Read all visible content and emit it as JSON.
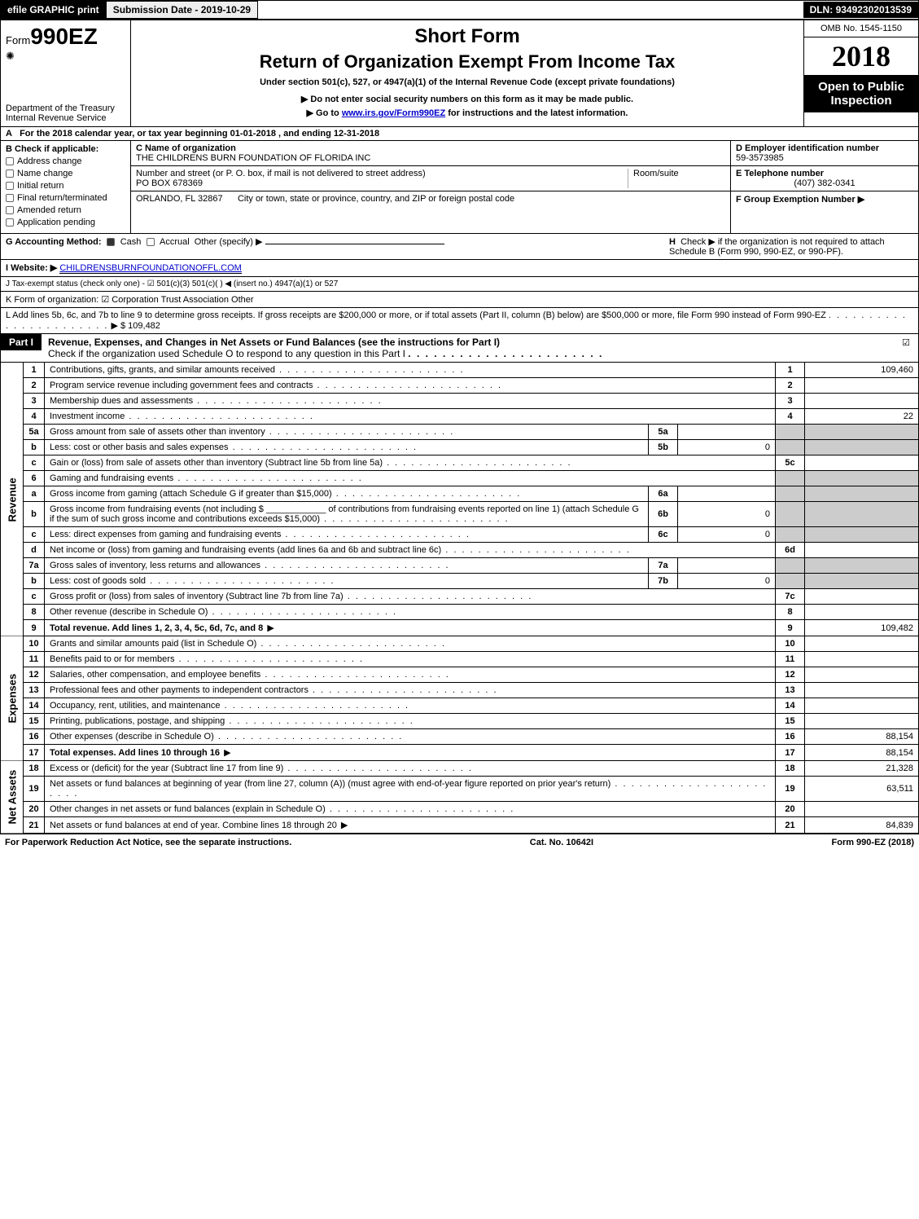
{
  "top": {
    "print_btn": "efile GRAPHIC print",
    "submission_label": "Submission Date - ",
    "submission_date": "2019-10-29",
    "dln_label": "DLN: ",
    "dln": "93492302013539"
  },
  "hdr": {
    "form_prefix": "Form",
    "form_number": "990EZ",
    "short_form": "Short Form",
    "title": "Return of Organization Exempt From Income Tax",
    "subtitle": "Under section 501(c), 527, or 4947(a)(1) of the Internal Revenue Code (except private foundations)",
    "note1": "▶ Do not enter social security numbers on this form as it may be made public.",
    "note2_prefix": "▶ Go to ",
    "note2_link": "www.irs.gov/Form990EZ",
    "note2_suffix": " for instructions and the latest information.",
    "dept1": "Department of the Treasury",
    "dept2": "Internal Revenue Service",
    "omb": "OMB No. 1545-1150",
    "year": "2018",
    "open_public": "Open to Public Inspection"
  },
  "row_a": {
    "label": "A",
    "text_prefix": "For the 2018 calendar year, or tax year beginning ",
    "begin": "01-01-2018",
    "mid": " , and ending ",
    "end": "12-31-2018"
  },
  "box_b": {
    "label": "B",
    "heading": "Check if applicable:",
    "items": [
      {
        "label": "Address change"
      },
      {
        "label": "Name change"
      },
      {
        "label": "Initial return"
      },
      {
        "label": "Final return/terminated"
      },
      {
        "label": "Amended return"
      },
      {
        "label": "Application pending"
      }
    ]
  },
  "box_c": {
    "c_label": "C Name of organization",
    "c_name": "THE CHILDRENS BURN FOUNDATION OF FLORIDA INC",
    "street_label": "Number and street (or P. O. box, if mail is not delivered to street address)",
    "street": "PO BOX 678369",
    "room_label": "Room/suite",
    "city_label": "City or town, state or province, country, and ZIP or foreign postal code",
    "city": "ORLANDO, FL  32867"
  },
  "box_d": {
    "d_label": "D Employer identification number",
    "ein": "59-3573985",
    "e_label": "E Telephone number",
    "phone": "(407) 382-0341",
    "f_label": "F Group Exemption Number ▶",
    "f_val": ""
  },
  "g": {
    "label": "G Accounting Method:",
    "cash": "Cash",
    "accrual": "Accrual",
    "other": "Other (specify) ▶"
  },
  "h": {
    "label": "H",
    "text": "Check ▶    if the organization is not required to attach Schedule B (Form 990, 990-EZ, or 990-PF)."
  },
  "i": {
    "label": "I Website: ▶",
    "website": "CHILDRENSBURNFOUNDATIONOFFL.COM"
  },
  "j": {
    "text": "J Tax-exempt status (check only one) -  ☑ 501(c)(3)   501(c)(  ) ◀ (insert no.)   4947(a)(1) or   527"
  },
  "k": {
    "text": "K Form of organization:   ☑ Corporation    Trust    Association    Other"
  },
  "l": {
    "text1": "L Add lines 5b, 6c, and 7b to line 9 to determine gross receipts. If gross receipts are $200,000 or more, or if total assets (Part II, column (B) below) are $500,000 or more, file Form 990 instead of Form 990-EZ",
    "arrow": " ▶ ",
    "amount": "$ 109,482"
  },
  "part1": {
    "label": "Part I",
    "title": "Revenue, Expenses, and Changes in Net Assets or Fund Balances (see the instructions for Part I)",
    "subtitle": "Check if the organization used Schedule O to respond to any question in this Part I",
    "check": "☑"
  },
  "sections": {
    "revenue": "Revenue",
    "expenses": "Expenses",
    "net_assets": "Net Assets"
  },
  "lines": [
    {
      "n": "1",
      "desc": "Contributions, gifts, grants, and similar amounts received",
      "rn": "1",
      "rv": "109,460"
    },
    {
      "n": "2",
      "desc": "Program service revenue including government fees and contracts",
      "rn": "2",
      "rv": ""
    },
    {
      "n": "3",
      "desc": "Membership dues and assessments",
      "rn": "3",
      "rv": ""
    },
    {
      "n": "4",
      "desc": "Investment income",
      "rn": "4",
      "rv": "22"
    },
    {
      "n": "5a",
      "desc": "Gross amount from sale of assets other than inventory",
      "mn": "5a",
      "mv": ""
    },
    {
      "n": "b",
      "desc": "Less: cost or other basis and sales expenses",
      "mn": "5b",
      "mv": "0"
    },
    {
      "n": "c",
      "desc": "Gain or (loss) from sale of assets other than inventory (Subtract line 5b from line 5a)",
      "rn": "5c",
      "rv": ""
    },
    {
      "n": "6",
      "desc": "Gaming and fundraising events"
    },
    {
      "n": "a",
      "desc": "Gross income from gaming (attach Schedule G if greater than $15,000)",
      "mn": "6a",
      "mv": ""
    },
    {
      "n": "b",
      "desc": "Gross income from fundraising events (not including $ ____________ of contributions from fundraising events reported on line 1) (attach Schedule G if the sum of such gross income and contributions exceeds $15,000)",
      "mn": "6b",
      "mv": "0"
    },
    {
      "n": "c",
      "desc": "Less: direct expenses from gaming and fundraising events",
      "mn": "6c",
      "mv": "0"
    },
    {
      "n": "d",
      "desc": "Net income or (loss) from gaming and fundraising events (add lines 6a and 6b and subtract line 6c)",
      "rn": "6d",
      "rv": ""
    },
    {
      "n": "7a",
      "desc": "Gross sales of inventory, less returns and allowances",
      "mn": "7a",
      "mv": ""
    },
    {
      "n": "b",
      "desc": "Less: cost of goods sold",
      "mn": "7b",
      "mv": "0"
    },
    {
      "n": "c",
      "desc": "Gross profit or (loss) from sales of inventory (Subtract line 7b from line 7a)",
      "rn": "7c",
      "rv": ""
    },
    {
      "n": "8",
      "desc": "Other revenue (describe in Schedule O)",
      "rn": "8",
      "rv": ""
    },
    {
      "n": "9",
      "desc": "Total revenue. Add lines 1, 2, 3, 4, 5c, 6d, 7c, and 8",
      "rn": "9",
      "rv": "109,482",
      "bold": true,
      "arrow": true
    }
  ],
  "exp_lines": [
    {
      "n": "10",
      "desc": "Grants and similar amounts paid (list in Schedule O)",
      "rn": "10",
      "rv": ""
    },
    {
      "n": "11",
      "desc": "Benefits paid to or for members",
      "rn": "11",
      "rv": ""
    },
    {
      "n": "12",
      "desc": "Salaries, other compensation, and employee benefits",
      "rn": "12",
      "rv": ""
    },
    {
      "n": "13",
      "desc": "Professional fees and other payments to independent contractors",
      "rn": "13",
      "rv": ""
    },
    {
      "n": "14",
      "desc": "Occupancy, rent, utilities, and maintenance",
      "rn": "14",
      "rv": ""
    },
    {
      "n": "15",
      "desc": "Printing, publications, postage, and shipping",
      "rn": "15",
      "rv": ""
    },
    {
      "n": "16",
      "desc": "Other expenses (describe in Schedule O)",
      "rn": "16",
      "rv": "88,154"
    },
    {
      "n": "17",
      "desc": "Total expenses. Add lines 10 through 16",
      "rn": "17",
      "rv": "88,154",
      "bold": true,
      "arrow": true
    }
  ],
  "na_lines": [
    {
      "n": "18",
      "desc": "Excess or (deficit) for the year (Subtract line 17 from line 9)",
      "rn": "18",
      "rv": "21,328"
    },
    {
      "n": "19",
      "desc": "Net assets or fund balances at beginning of year (from line 27, column (A)) (must agree with end-of-year figure reported on prior year's return)",
      "rn": "19",
      "rv": "63,511"
    },
    {
      "n": "20",
      "desc": "Other changes in net assets or fund balances (explain in Schedule O)",
      "rn": "20",
      "rv": ""
    },
    {
      "n": "21",
      "desc": "Net assets or fund balances at end of year. Combine lines 18 through 20",
      "rn": "21",
      "rv": "84,839",
      "arrow": true
    }
  ],
  "footer": {
    "left": "For Paperwork Reduction Act Notice, see the separate instructions.",
    "mid": "Cat. No. 10642I",
    "right": "Form 990-EZ (2018)"
  }
}
